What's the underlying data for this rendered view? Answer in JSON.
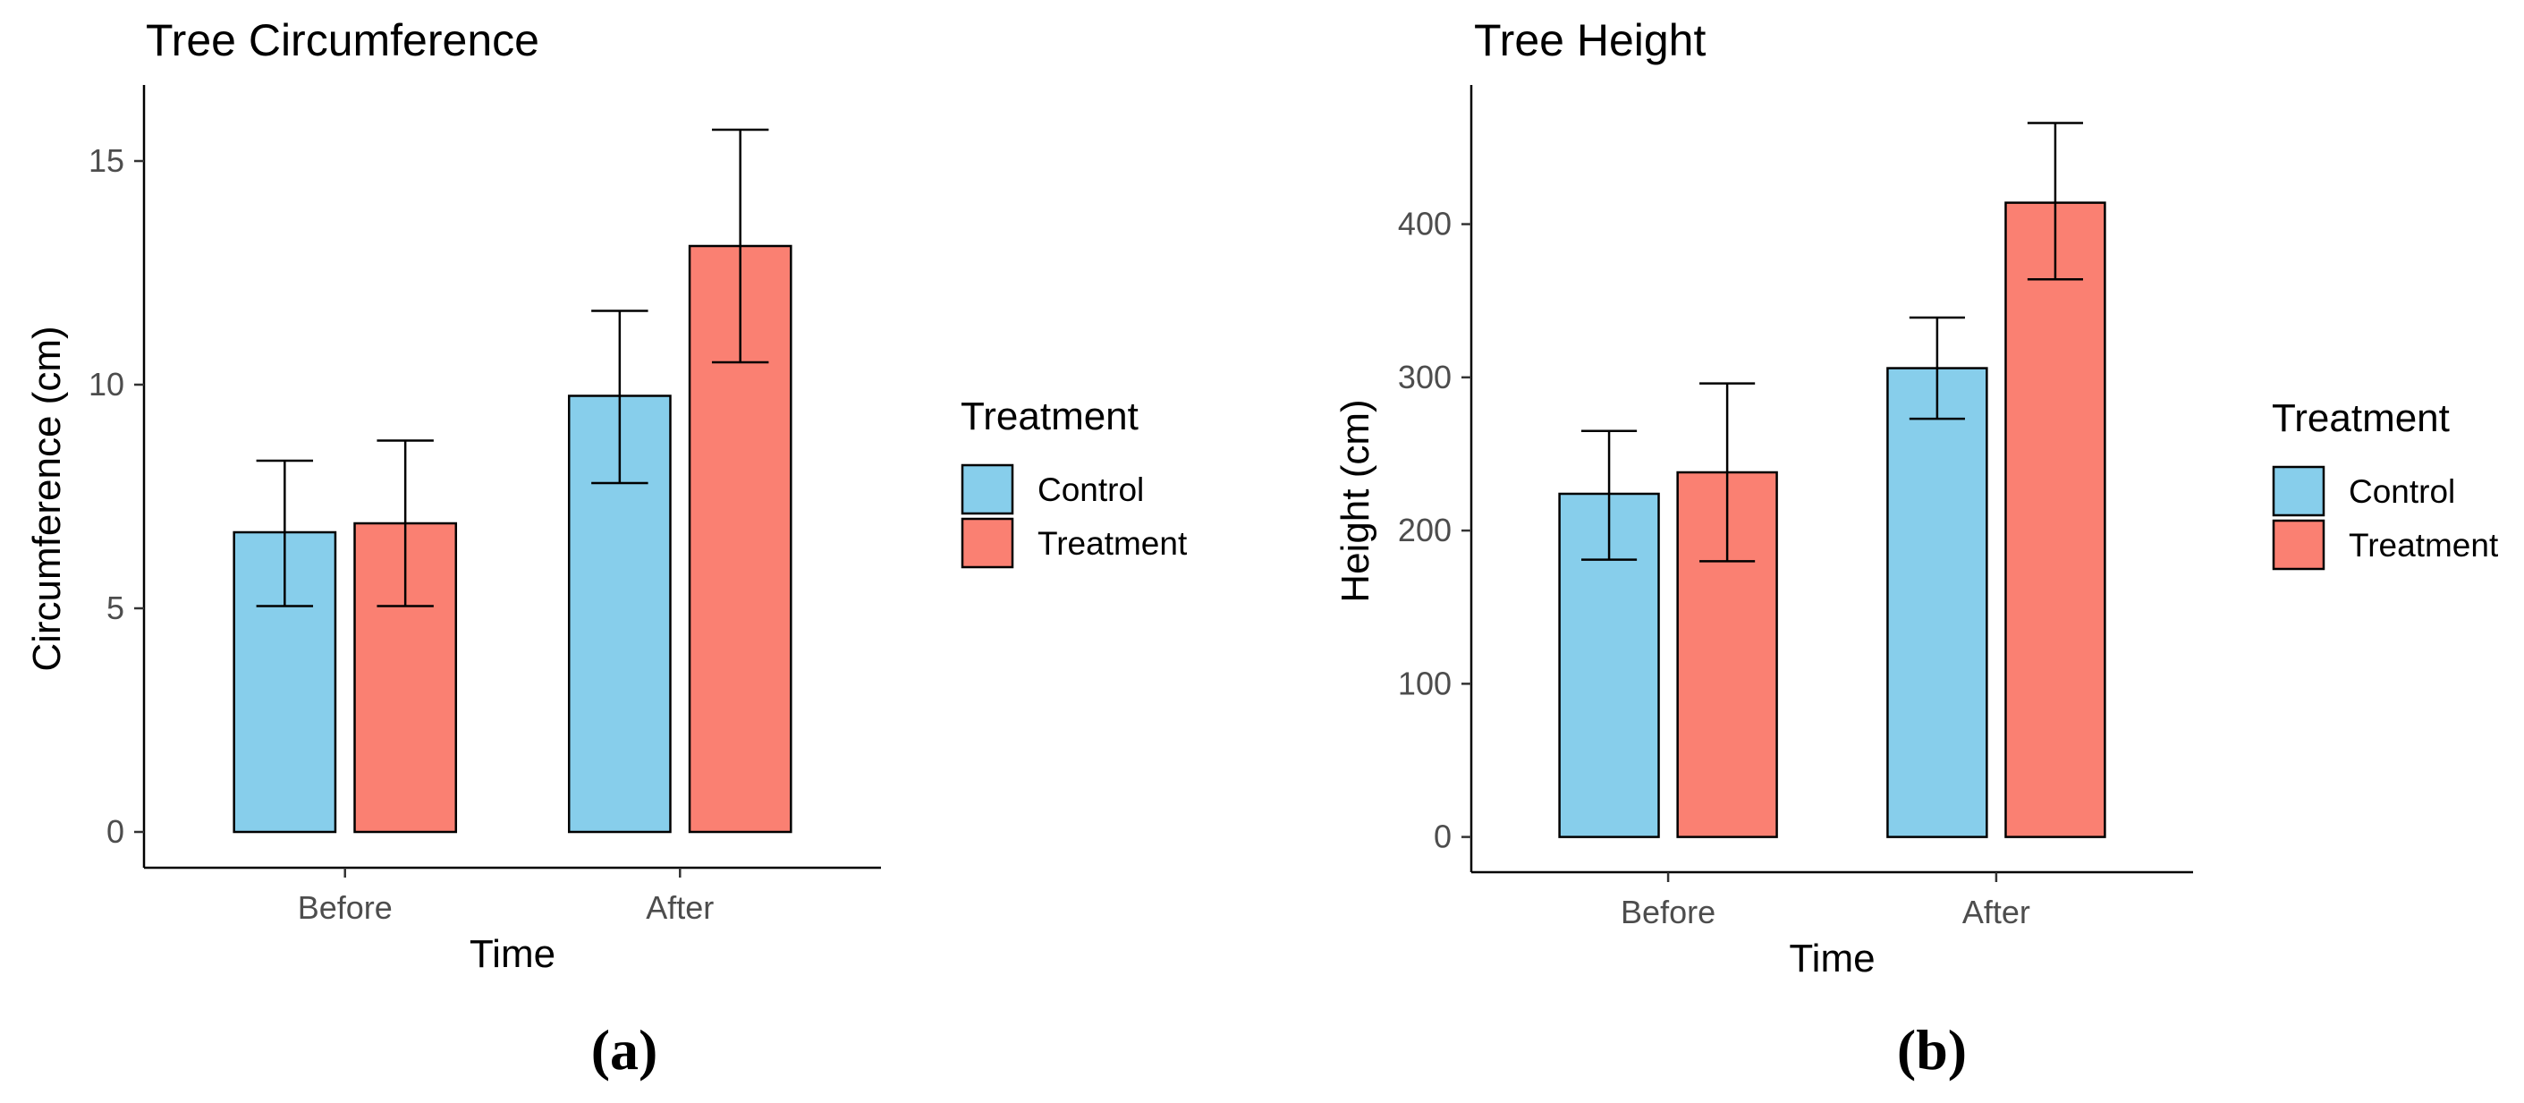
{
  "chart_data": [
    {
      "type": "bar",
      "title": "Tree Circumference",
      "xlabel": "Time",
      "ylabel": "Circumference (cm)",
      "categories": [
        "Before",
        "After"
      ],
      "ylim": [
        -0.8,
        16.5
      ],
      "yticks": [
        0,
        5,
        10,
        15
      ],
      "grid": false,
      "legend": {
        "title": "Treatment",
        "position": "right"
      },
      "series": [
        {
          "name": "Control",
          "color": "#87ceeb",
          "values": [
            6.7,
            9.75
          ],
          "error_low": [
            5.05,
            7.8
          ],
          "error_high": [
            8.3,
            11.65
          ]
        },
        {
          "name": "Treatment",
          "color": "#fa8072",
          "values": [
            6.9,
            13.1
          ],
          "error_low": [
            5.05,
            10.5
          ],
          "error_high": [
            8.75,
            15.7
          ]
        }
      ],
      "panel_label": "(a)"
    },
    {
      "type": "bar",
      "title": "Tree Height",
      "xlabel": "Time",
      "ylabel": "Height (cm)",
      "categories": [
        "Before",
        "After"
      ],
      "ylim": [
        -23,
        485
      ],
      "yticks": [
        0,
        100,
        200,
        300,
        400
      ],
      "grid": false,
      "legend": {
        "title": "Treatment",
        "position": "right"
      },
      "series": [
        {
          "name": "Control",
          "color": "#87ceeb",
          "values": [
            224,
            306
          ],
          "error_low": [
            181,
            273
          ],
          "error_high": [
            265,
            339
          ]
        },
        {
          "name": "Treatment",
          "color": "#fa8072",
          "values": [
            238,
            414
          ],
          "error_low": [
            180,
            364
          ],
          "error_high": [
            296,
            466
          ]
        }
      ],
      "panel_label": "(b)"
    }
  ]
}
